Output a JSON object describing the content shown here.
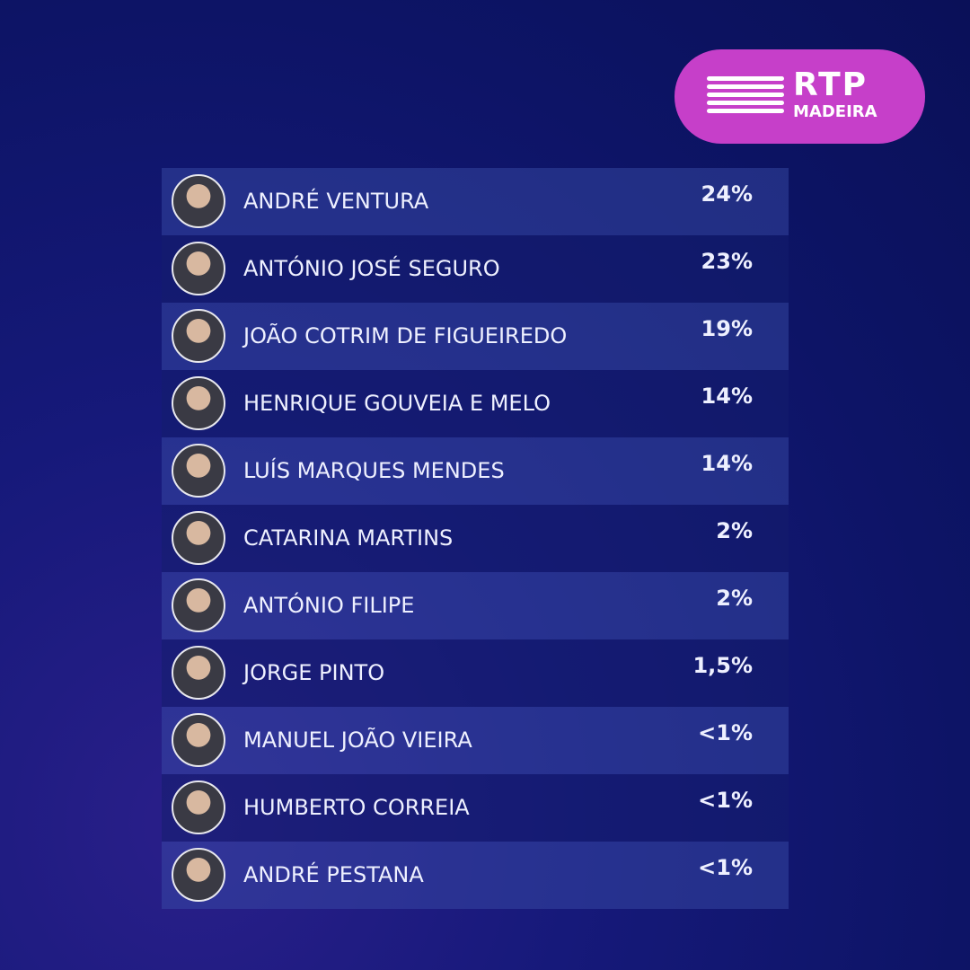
{
  "logo": {
    "brand": "RTP",
    "region": "MADEIRA"
  },
  "table": {
    "rows": [
      [
        "ANDRÉ VENTURA",
        "24%"
      ],
      [
        "ANTÓNIO JOSÉ SEGURO",
        "23%"
      ],
      [
        "JOÃO COTRIM DE FIGUEIREDO",
        "19%"
      ],
      [
        "HENRIQUE GOUVEIA E MELO",
        "14%"
      ],
      [
        "LUÍS MARQUES MENDES",
        "14%"
      ],
      [
        "CATARINA MARTINS",
        "2%"
      ],
      [
        "ANTÓNIO FILIPE",
        "2%"
      ],
      [
        "JORGE PINTO",
        "1,5%"
      ],
      [
        "MANUEL JOÃO VIEIRA",
        "<1%"
      ],
      [
        "HUMBERTO CORREIA",
        "<1%"
      ],
      [
        "ANDRÉ PESTANA",
        "<1%"
      ]
    ]
  }
}
